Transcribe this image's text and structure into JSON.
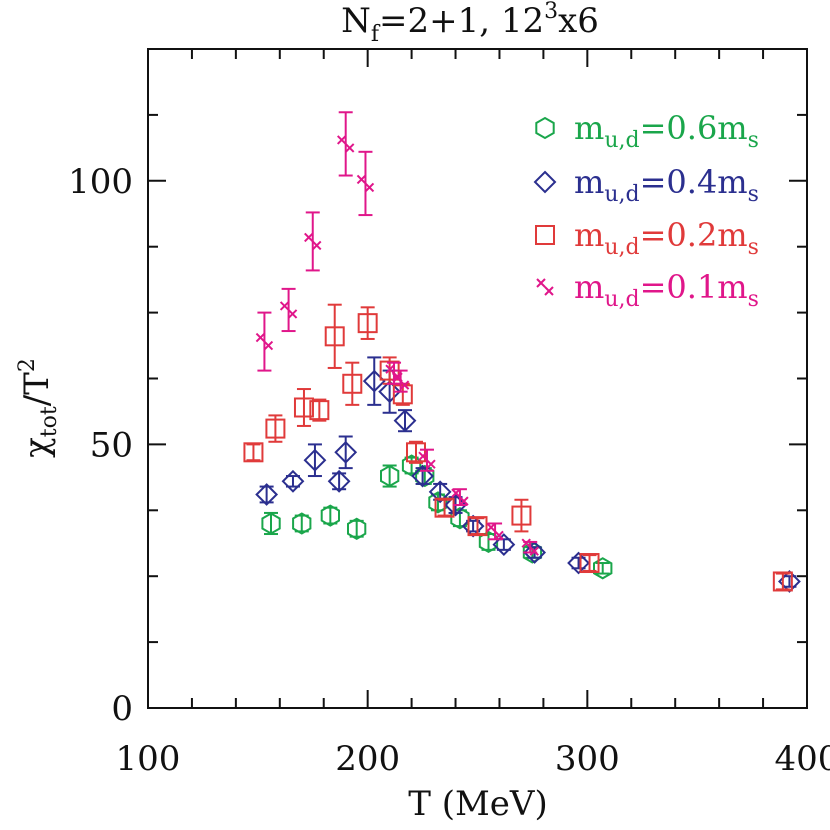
{
  "chart_data": {
    "type": "scatter",
    "title_main": "N",
    "title_sub": "f",
    "title_rest": "=2+1,  12",
    "title_sup": "3",
    "title_tail": "x6",
    "xlabel": "T (MeV)",
    "ylabel_main": "χ",
    "ylabel_sub": "tot",
    "ylabel_mid": "/T",
    "ylabel_sup": "2",
    "xlim": [
      100,
      400
    ],
    "ylim": [
      0,
      125
    ],
    "x_ticks": [
      100,
      200,
      300,
      400
    ],
    "x_tick_labels": [
      "100",
      "200",
      "300",
      "400"
    ],
    "y_ticks": [
      0,
      50,
      100
    ],
    "y_tick_labels": [
      "0",
      "50",
      "100"
    ],
    "grid": false,
    "legend_position": "top-right",
    "series": [
      {
        "name_main": "m",
        "name_sub": "u,d",
        "name_mid": "=0.6m",
        "name_sub2": "s",
        "marker": "hexagon",
        "color": "#1aa64b",
        "points": [
          {
            "x": 156,
            "y": 35,
            "err": 2
          },
          {
            "x": 170,
            "y": 35,
            "err": 1.5
          },
          {
            "x": 183,
            "y": 36.5,
            "err": 1.5
          },
          {
            "x": 195,
            "y": 34,
            "err": 1.5
          },
          {
            "x": 210,
            "y": 44,
            "err": 2
          },
          {
            "x": 220,
            "y": 46,
            "err": 1.5
          },
          {
            "x": 226,
            "y": 44,
            "err": 1.5
          },
          {
            "x": 232,
            "y": 39,
            "err": 1.5
          },
          {
            "x": 242,
            "y": 36,
            "err": 1.5
          },
          {
            "x": 255,
            "y": 31.5,
            "err": 1.5
          },
          {
            "x": 275,
            "y": 29.5,
            "err": 1
          },
          {
            "x": 307,
            "y": 26.5,
            "err": 1
          }
        ]
      },
      {
        "name_main": "m",
        "name_sub": "u,d",
        "name_mid": "=0.4m",
        "name_sub2": "s",
        "marker": "diamond",
        "color": "#2b2f8f",
        "points": [
          {
            "x": 154,
            "y": 40.5,
            "err": 1.5
          },
          {
            "x": 166,
            "y": 43,
            "err": 1
          },
          {
            "x": 176,
            "y": 47,
            "err": 3
          },
          {
            "x": 187,
            "y": 43,
            "err": 1.5
          },
          {
            "x": 190,
            "y": 48.5,
            "err": 3
          },
          {
            "x": 203,
            "y": 62,
            "err": 4.5
          },
          {
            "x": 210,
            "y": 60,
            "err": 4
          },
          {
            "x": 217,
            "y": 54.5,
            "err": 2
          },
          {
            "x": 225,
            "y": 44,
            "err": 1.5
          },
          {
            "x": 233,
            "y": 41,
            "err": 1.5
          },
          {
            "x": 240,
            "y": 38.5,
            "err": 1.5
          },
          {
            "x": 248,
            "y": 34.5,
            "err": 1
          },
          {
            "x": 262,
            "y": 31,
            "err": 1
          },
          {
            "x": 276,
            "y": 29.5,
            "err": 1
          },
          {
            "x": 296,
            "y": 27.5,
            "err": 1
          },
          {
            "x": 392,
            "y": 24,
            "err": 1
          }
        ]
      },
      {
        "name_main": "m",
        "name_sub": "u,d",
        "name_mid": "=0.2m",
        "name_sub2": "s",
        "marker": "square",
        "color": "#e03a3a",
        "points": [
          {
            "x": 148,
            "y": 48.5,
            "err": 1.5
          },
          {
            "x": 158,
            "y": 53,
            "err": 2.5
          },
          {
            "x": 171,
            "y": 57,
            "err": 3.5
          },
          {
            "x": 178,
            "y": 56.5,
            "err": 2
          },
          {
            "x": 185,
            "y": 70.5,
            "err": 6
          },
          {
            "x": 193,
            "y": 61.5,
            "err": 4
          },
          {
            "x": 200,
            "y": 73,
            "err": 3
          },
          {
            "x": 210,
            "y": 64,
            "err": 2.5
          },
          {
            "x": 216,
            "y": 59.5,
            "err": 2
          },
          {
            "x": 222,
            "y": 48.5,
            "err": 2
          },
          {
            "x": 235,
            "y": 38,
            "err": 1.5
          },
          {
            "x": 250,
            "y": 34.5,
            "err": 1.5
          },
          {
            "x": 270,
            "y": 36.5,
            "err": 3
          },
          {
            "x": 301,
            "y": 27.5,
            "err": 1.5
          },
          {
            "x": 389,
            "y": 24,
            "err": 1.5
          }
        ]
      },
      {
        "name_main": "m",
        "name_sub": "u,d",
        "name_mid": "=0.1m",
        "name_sub2": "s",
        "marker": "x-pair",
        "color": "#e0168a",
        "points": [
          {
            "x": 153,
            "y": 69.5,
            "err": 5.5
          },
          {
            "x": 164,
            "y": 75.5,
            "err": 4
          },
          {
            "x": 175,
            "y": 88.5,
            "err": 5.5
          },
          {
            "x": 190,
            "y": 107,
            "err": 6
          },
          {
            "x": 199,
            "y": 99.5,
            "err": 6
          },
          {
            "x": 212,
            "y": 63.5,
            "err": 2
          },
          {
            "x": 215,
            "y": 62,
            "err": 2
          },
          {
            "x": 227,
            "y": 47,
            "err": 2
          },
          {
            "x": 242,
            "y": 40,
            "err": 1.5
          },
          {
            "x": 258,
            "y": 33.5,
            "err": 1.5
          },
          {
            "x": 274,
            "y": 30.5,
            "err": 1
          }
        ]
      }
    ]
  }
}
